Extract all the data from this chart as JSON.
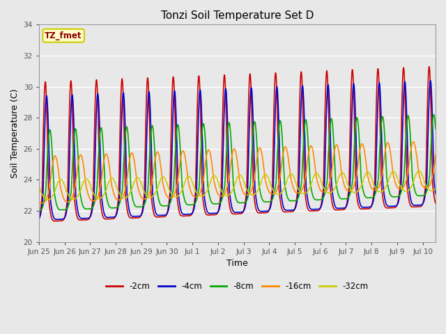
{
  "title": "Tonzi Soil Temperature Set D",
  "xlabel": "Time",
  "ylabel": "Soil Temperature (C)",
  "ylim": [
    20,
    34
  ],
  "yticks": [
    20,
    22,
    24,
    26,
    28,
    30,
    32,
    34
  ],
  "annotation_text": "TZ_fmet",
  "annotation_color": "#8B0000",
  "annotation_bg": "#FFFFCC",
  "annotation_border": "#CCCC00",
  "background_color": "#E8E8E8",
  "plot_bg_color": "#E8E8E8",
  "grid_color": "#FFFFFF",
  "series": [
    {
      "label": "-2cm",
      "color": "#CC0000",
      "lw": 1.2
    },
    {
      "label": "-4cm",
      "color": "#0000CC",
      "lw": 1.2
    },
    {
      "label": "-8cm",
      "color": "#00AA00",
      "lw": 1.2
    },
    {
      "label": "-16cm",
      "color": "#FF8800",
      "lw": 1.2
    },
    {
      "label": "-32cm",
      "color": "#CCCC00",
      "lw": 1.2
    }
  ],
  "num_days": 15.5,
  "points_per_day": 96,
  "x_tick_labels": [
    "Jun 25",
    "Jun 26",
    "Jun 27",
    "Jun 28",
    "Jun 29",
    "Jun 30",
    "Jul 1",
    "Jul 2",
    "Jul 3",
    "Jul 4",
    "Jul 5",
    "Jul 6",
    "Jul 7",
    "Jul 8",
    "Jul 9",
    "Jul 10"
  ]
}
